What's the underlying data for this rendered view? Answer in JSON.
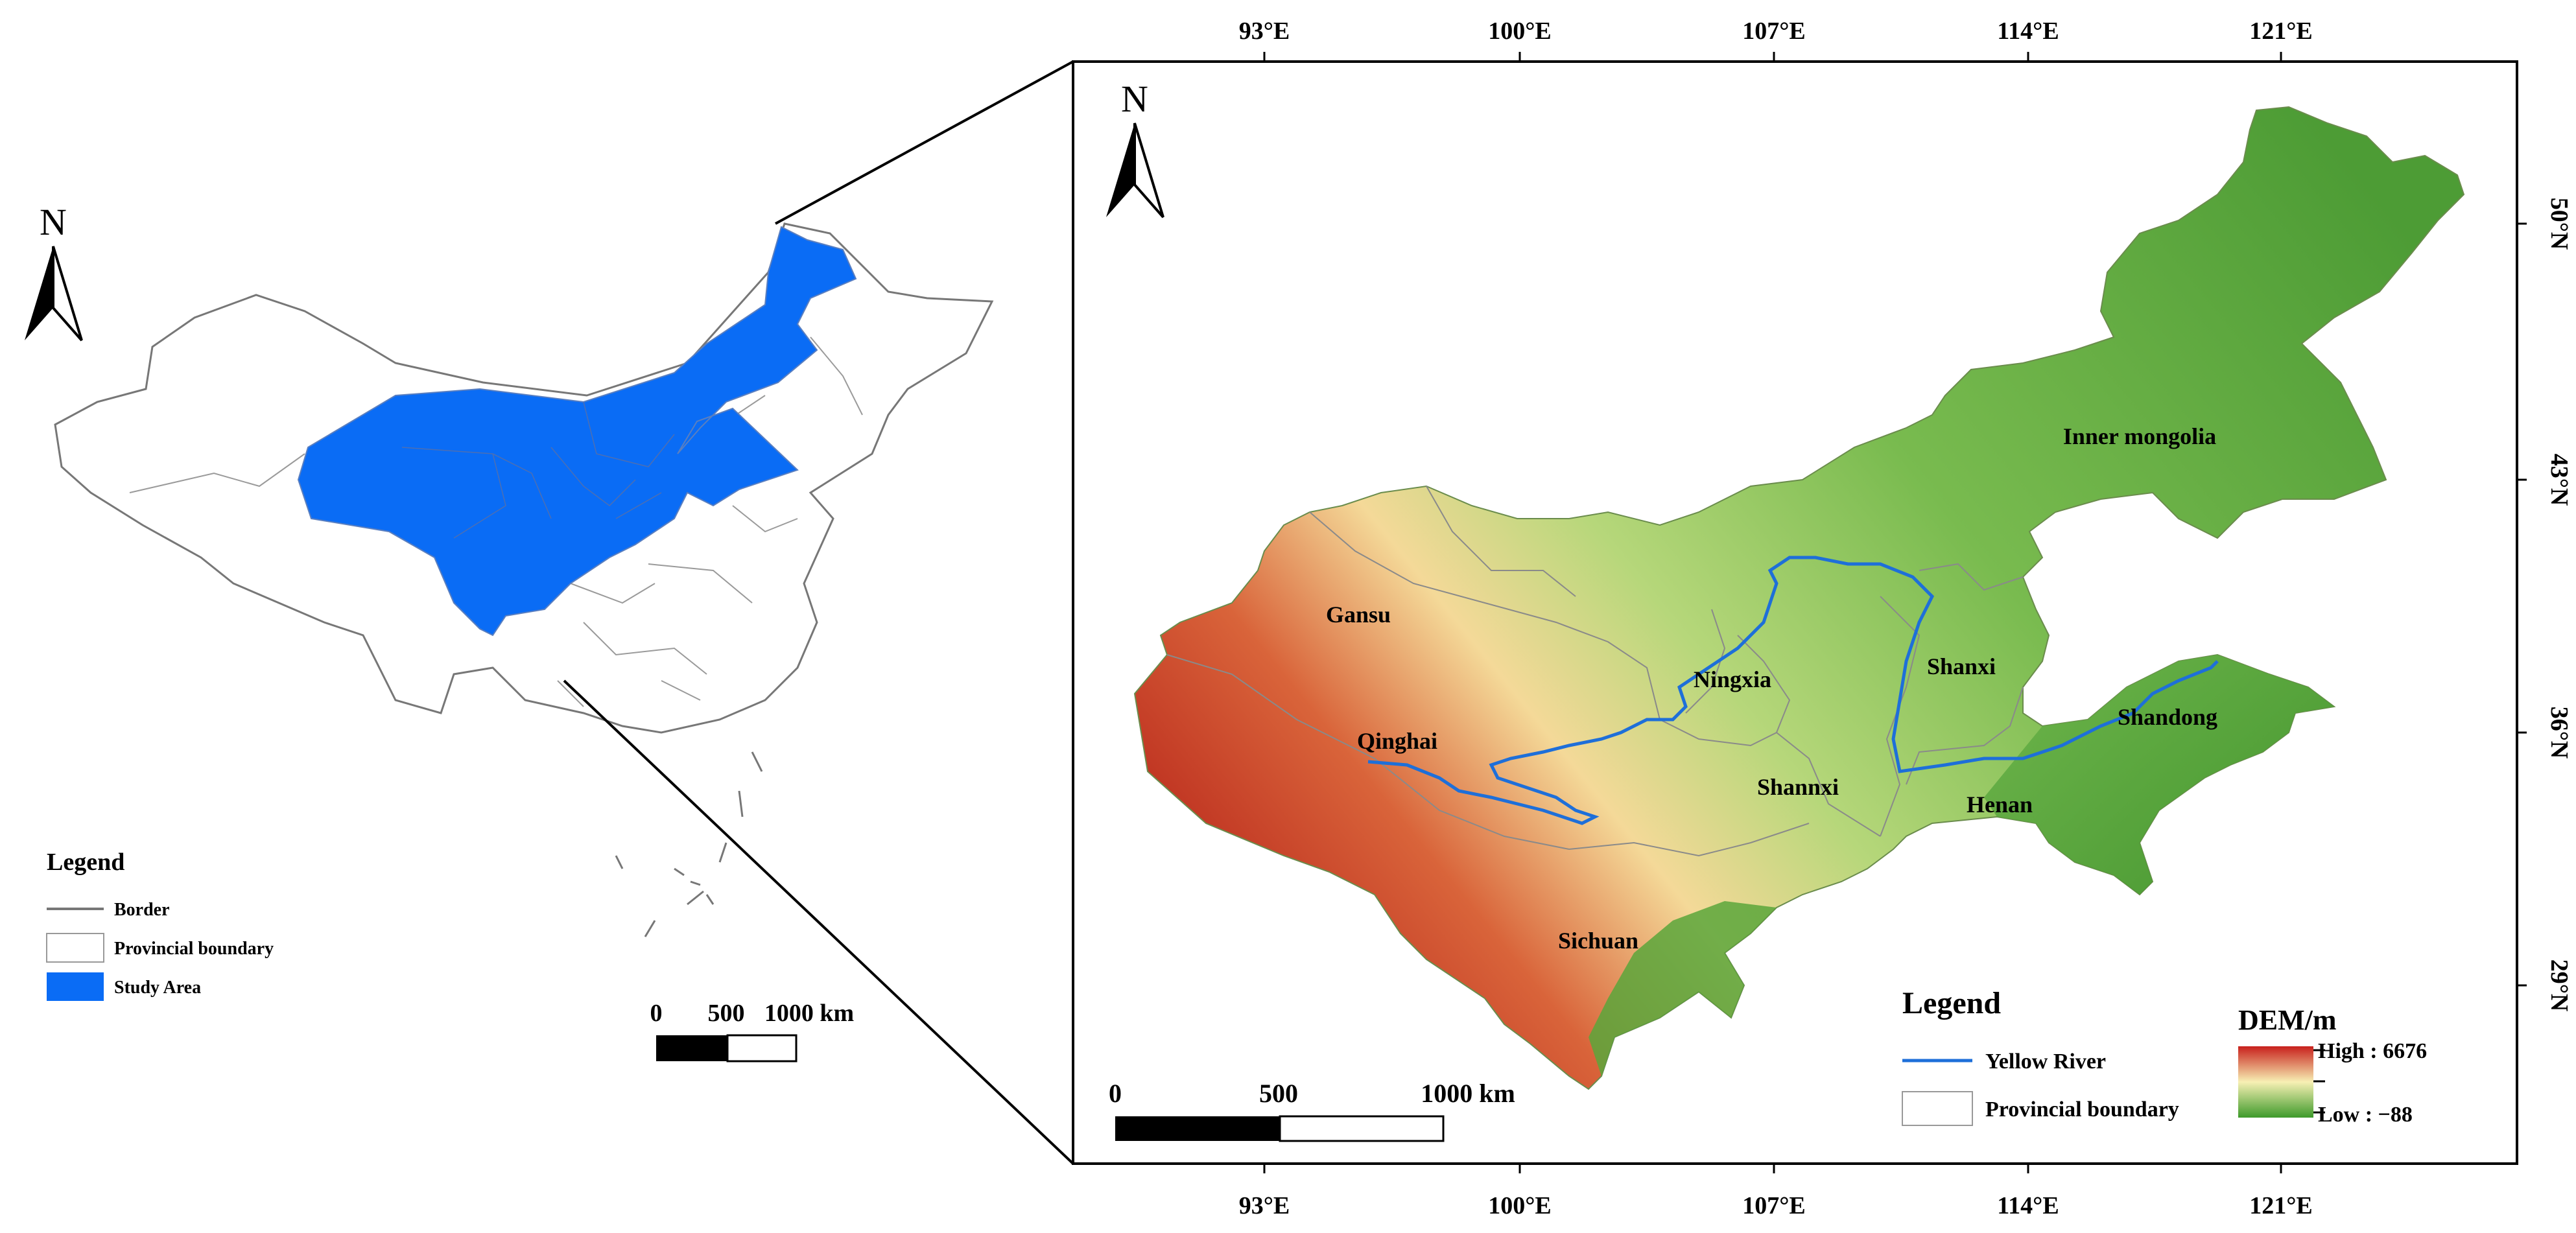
{
  "inset": {
    "north_label": "N",
    "legend": {
      "title": "Legend",
      "items": [
        {
          "label": "Border"
        },
        {
          "label": "Provincial boundary"
        },
        {
          "label": "Study Area"
        }
      ]
    },
    "scale": {
      "ticks": [
        "0",
        "500",
        "1000 km"
      ]
    },
    "colors": {
      "study_area": "#0a6cf5",
      "border": "#777777",
      "province": "#999999"
    }
  },
  "main": {
    "north_label": "N",
    "lon_labels": [
      "93°E",
      "100°E",
      "107°E",
      "114°E",
      "121°E"
    ],
    "lat_labels": [
      "50°N",
      "43°N",
      "36°N",
      "29°N"
    ],
    "provinces": [
      {
        "name": "Inner mongolia"
      },
      {
        "name": "Gansu"
      },
      {
        "name": "Ningxia"
      },
      {
        "name": "Shanxi"
      },
      {
        "name": "Shandong"
      },
      {
        "name": "Qinghai"
      },
      {
        "name": "Shannxi"
      },
      {
        "name": "Henan"
      },
      {
        "name": "Sichuan"
      }
    ],
    "legend": {
      "title": "Legend",
      "items": [
        {
          "label": "Yellow River"
        },
        {
          "label": "Provincial boundary"
        }
      ]
    },
    "dem": {
      "title": "DEM/m",
      "high": "High : 6676",
      "low": "Low : −88",
      "colors": {
        "high": "#c8201c",
        "mid": "#f7f0b4",
        "low": "#3d9a2a"
      }
    },
    "scale": {
      "ticks": [
        "0",
        "500",
        "1000 km"
      ]
    },
    "river_color": "#1e6fd9"
  }
}
